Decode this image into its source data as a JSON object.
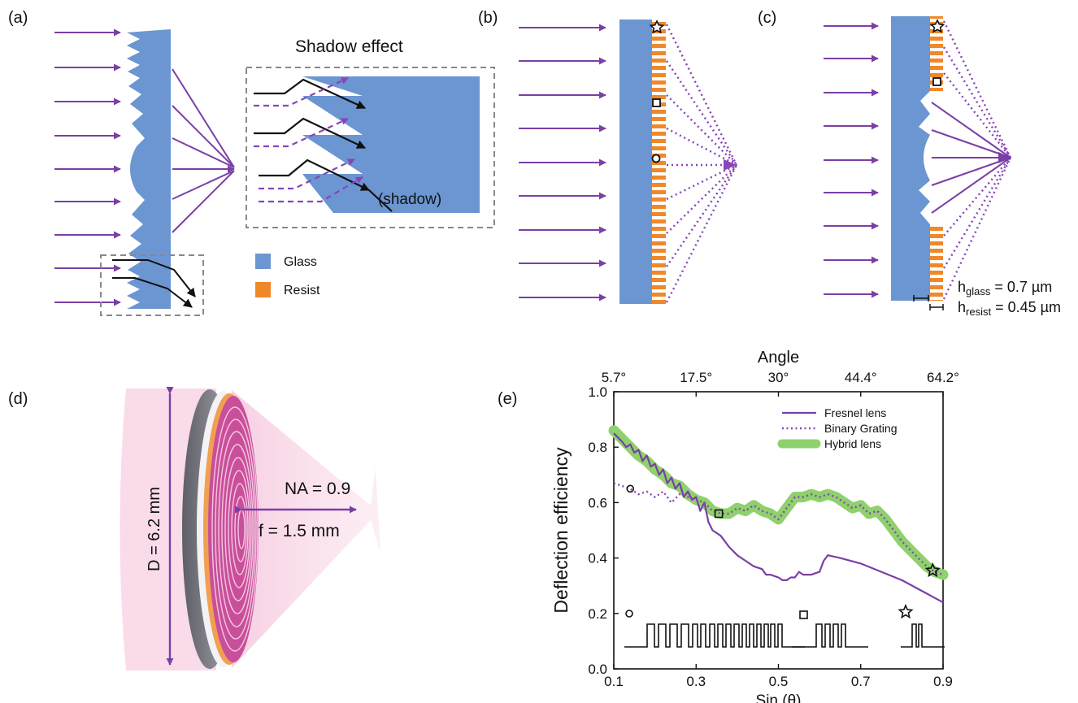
{
  "panel_labels": {
    "a": "(a)",
    "b": "(b)",
    "c": "(c)",
    "d": "(d)",
    "e": "(e)"
  },
  "panel_a": {
    "inset_title": "Shadow effect",
    "shadow_label": "(shadow)"
  },
  "legend": {
    "glass": "Glass",
    "resist": "Resist"
  },
  "colors": {
    "glass": "#6b96d2",
    "resist": "#f0882a",
    "ray": "#7a3fa6",
    "dashed_ray": "#8a44b8",
    "hybrid": "#8fd16c",
    "beam": "#f6c9dc"
  },
  "panel_c": {
    "h_glass_base": "h",
    "h_glass_sub": "glass",
    "h_glass_val": " = 0.7 µm",
    "h_resist_base": "h",
    "h_resist_sub": "resist",
    "h_resist_val": " = 0.45 µm"
  },
  "panel_d": {
    "diameter": "D = 6.2 mm",
    "na": "NA = 0.9",
    "focal": "f = 1.5 mm"
  },
  "chart_data": {
    "type": "line",
    "title": "",
    "xlabel": "Sin (θ)",
    "ylabel": "Deflection efficiency",
    "top_axis_label": "Angle",
    "top_ticks": [
      {
        "x": 0.1,
        "label": "5.7°"
      },
      {
        "x": 0.3,
        "label": "17.5°"
      },
      {
        "x": 0.5,
        "label": "30°"
      },
      {
        "x": 0.7,
        "label": "44.4°"
      },
      {
        "x": 0.9,
        "label": "64.2°"
      }
    ],
    "xlim": [
      0.1,
      0.9
    ],
    "ylim": [
      0.0,
      1.0
    ],
    "xticks": [
      0.1,
      0.3,
      0.5,
      0.7,
      0.9
    ],
    "yticks": [
      0.0,
      0.2,
      0.4,
      0.6,
      0.8,
      1.0
    ],
    "legend_position": "top-right",
    "series": [
      {
        "name": "Fresnel lens",
        "style": "solid",
        "x": [
          0.1,
          0.12,
          0.13,
          0.14,
          0.15,
          0.16,
          0.17,
          0.18,
          0.19,
          0.2,
          0.21,
          0.22,
          0.23,
          0.24,
          0.25,
          0.26,
          0.27,
          0.28,
          0.29,
          0.3,
          0.31,
          0.32,
          0.33,
          0.34,
          0.36,
          0.38,
          0.4,
          0.42,
          0.44,
          0.46,
          0.47,
          0.48,
          0.5,
          0.51,
          0.52,
          0.53,
          0.54,
          0.55,
          0.56,
          0.58,
          0.6,
          0.61,
          0.62,
          0.65,
          0.7,
          0.75,
          0.8,
          0.85,
          0.9
        ],
        "y": [
          0.85,
          0.82,
          0.8,
          0.81,
          0.78,
          0.79,
          0.75,
          0.77,
          0.73,
          0.74,
          0.7,
          0.72,
          0.67,
          0.69,
          0.65,
          0.67,
          0.62,
          0.64,
          0.61,
          0.62,
          0.57,
          0.6,
          0.53,
          0.5,
          0.48,
          0.44,
          0.41,
          0.39,
          0.37,
          0.36,
          0.34,
          0.34,
          0.33,
          0.32,
          0.32,
          0.33,
          0.33,
          0.35,
          0.34,
          0.34,
          0.35,
          0.39,
          0.41,
          0.4,
          0.38,
          0.35,
          0.32,
          0.28,
          0.24
        ]
      },
      {
        "name": "Binary Grating",
        "style": "dotted",
        "x": [
          0.1,
          0.12,
          0.14,
          0.16,
          0.18,
          0.2,
          0.22,
          0.24,
          0.26,
          0.28,
          0.3,
          0.32,
          0.34,
          0.36,
          0.38,
          0.4,
          0.42,
          0.44,
          0.46,
          0.48,
          0.5,
          0.52,
          0.54,
          0.56,
          0.58,
          0.6,
          0.62,
          0.64,
          0.66,
          0.68,
          0.7,
          0.72,
          0.74,
          0.76,
          0.78,
          0.8,
          0.82,
          0.84,
          0.86,
          0.88,
          0.9
        ],
        "y": [
          0.67,
          0.66,
          0.65,
          0.63,
          0.64,
          0.62,
          0.64,
          0.6,
          0.63,
          0.62,
          0.61,
          0.6,
          0.57,
          0.56,
          0.56,
          0.58,
          0.57,
          0.59,
          0.57,
          0.56,
          0.54,
          0.58,
          0.62,
          0.62,
          0.63,
          0.62,
          0.63,
          0.62,
          0.6,
          0.58,
          0.59,
          0.56,
          0.57,
          0.54,
          0.5,
          0.46,
          0.43,
          0.4,
          0.37,
          0.35,
          0.34
        ]
      },
      {
        "name": "Hybrid lens",
        "style": "thick",
        "x": [
          0.1,
          0.12,
          0.14,
          0.16,
          0.18,
          0.2,
          0.22,
          0.24,
          0.26,
          0.28,
          0.3,
          0.32,
          0.34,
          0.36,
          0.38,
          0.4,
          0.42,
          0.44,
          0.46,
          0.48,
          0.5,
          0.52,
          0.54,
          0.56,
          0.58,
          0.6,
          0.62,
          0.64,
          0.66,
          0.68,
          0.7,
          0.72,
          0.74,
          0.76,
          0.78,
          0.8,
          0.82,
          0.84,
          0.86,
          0.88,
          0.9
        ],
        "y": [
          0.86,
          0.83,
          0.8,
          0.77,
          0.75,
          0.72,
          0.7,
          0.67,
          0.66,
          0.63,
          0.61,
          0.6,
          0.57,
          0.56,
          0.56,
          0.58,
          0.57,
          0.59,
          0.57,
          0.56,
          0.54,
          0.58,
          0.62,
          0.62,
          0.63,
          0.62,
          0.63,
          0.62,
          0.6,
          0.58,
          0.59,
          0.56,
          0.57,
          0.54,
          0.5,
          0.46,
          0.43,
          0.4,
          0.37,
          0.35,
          0.34
        ]
      }
    ],
    "markers": [
      {
        "shape": "circle",
        "x": 0.14,
        "y": 0.65
      },
      {
        "shape": "square",
        "x": 0.355,
        "y": 0.56
      },
      {
        "shape": "star",
        "x": 0.875,
        "y": 0.355
      }
    ]
  }
}
